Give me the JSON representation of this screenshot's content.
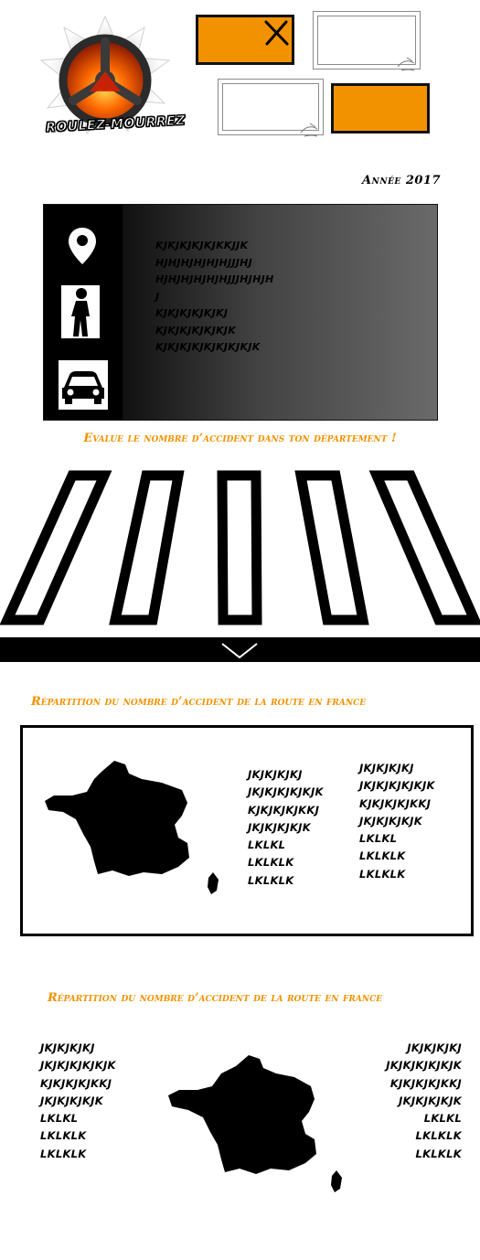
{
  "header": {
    "logo_text": "ROULEZ-MOURREZ",
    "year_label": "Année 2017"
  },
  "info_panel": {
    "lines": [
      "KJKJKJKJKJKKJJK",
      "HJHJHJHJHJHJJJHJ",
      "HJHJHJHJHJHJJJHJHJH",
      "J",
      "KJKJKJKJKJKJ",
      "KJKJKJKJKJKJK",
      "KJKJKJKJKJKJKJKJK"
    ],
    "icons": [
      "location-pin-icon",
      "pedestrian-icon",
      "car-icon"
    ]
  },
  "crosswalk_title": "Evalue le nombre d’accident dans ton département !",
  "section1": {
    "title": "Répartition du nombre d’accident de la route en france",
    "list_a": [
      "JKJKJKJKJ",
      "JKJKJKJKJKJK",
      "KJKJKJKJKKJ",
      "JKJKJKJKJK",
      "LKLKL",
      "LKLKLK",
      "LKLKLK"
    ],
    "list_b": [
      "JKJKJKJKJ",
      "JKJKJKJKJKJK",
      "KJKJKJKJKKJ",
      "JKJKJKJKJK",
      "LKLKL",
      "LKLKLK",
      "LKLKLK"
    ]
  },
  "section2": {
    "title": "Répartition du nombre d’accident de la route en france",
    "list_left": [
      "JKJKJKJKJ",
      "JKJKJKJKJKJK",
      "KJKJKJKJKKJ",
      "JKJKJKJKJK",
      "LKLKL",
      "LKLKLK",
      "LKLKLK"
    ],
    "list_right": [
      "JKJKJKJKJ",
      "JKJKJKJKJKJK",
      "KJKJKJKJKKJ",
      "JKJKJKJKJK",
      "LKLKL",
      "LKLKLK",
      "LKLKLK"
    ]
  },
  "colors": {
    "accent": "#f39200",
    "dark": "#000000"
  }
}
